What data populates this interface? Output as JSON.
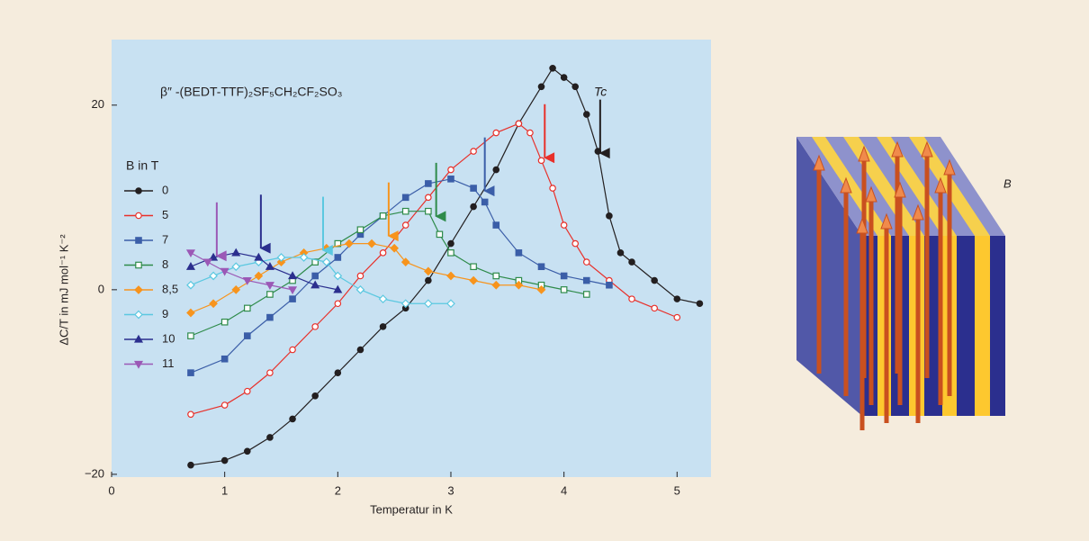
{
  "chart_data": {
    "type": "line",
    "annotation": "β″ -(BEDT-TTF)₂SF₅CH₂CF₂SO₃",
    "tc_label": "Tc",
    "x_label": "Temperatur in K",
    "y_label": "ΔC/T in mJ mol⁻¹ K⁻²",
    "legend_title": "B in T",
    "diagram_label": "B",
    "xlim": [
      0,
      5.3
    ],
    "ylim": [
      -20.3,
      27.1
    ],
    "xticks": [
      0,
      1,
      2,
      3,
      4,
      5
    ],
    "yticks": [
      {
        "value": -20,
        "label": "−20"
      },
      0,
      20
    ],
    "series": [
      {
        "name": "0",
        "color": "#231f20",
        "marker": "circle",
        "filled": true,
        "tc": 4.32,
        "x": [
          0.7,
          1.0,
          1.2,
          1.4,
          1.6,
          1.8,
          2.0,
          2.2,
          2.4,
          2.6,
          2.8,
          3.0,
          3.2,
          3.4,
          3.6,
          3.8,
          3.9,
          4.0,
          4.1,
          4.2,
          4.3,
          4.4,
          4.5,
          4.6,
          4.8,
          5.0,
          5.2
        ],
        "values": [
          -19,
          -18.5,
          -17.5,
          -16,
          -14,
          -11.5,
          -9,
          -6.5,
          -4,
          -2,
          1,
          5,
          9,
          13,
          18,
          22,
          24,
          23,
          22,
          19,
          15,
          8,
          4,
          3,
          1,
          -1,
          -1.5
        ]
      },
      {
        "name": "5",
        "color": "#e8302a",
        "marker": "circle",
        "filled": false,
        "tc": 3.83,
        "x": [
          0.7,
          1.0,
          1.2,
          1.4,
          1.6,
          1.8,
          2.0,
          2.2,
          2.4,
          2.6,
          2.8,
          3.0,
          3.2,
          3.4,
          3.6,
          3.7,
          3.8,
          3.9,
          4.0,
          4.1,
          4.2,
          4.4,
          4.6,
          4.8,
          5.0
        ],
        "values": [
          -13.5,
          -12.5,
          -11,
          -9,
          -6.5,
          -4,
          -1.5,
          1.5,
          4,
          7,
          10,
          13,
          15,
          17,
          18,
          17,
          14,
          11,
          7,
          5,
          3,
          1,
          -1,
          -2,
          -3
        ]
      },
      {
        "name": "7",
        "color": "#3b5ea8",
        "marker": "square",
        "filled": true,
        "tc": 3.3,
        "x": [
          0.7,
          1.0,
          1.2,
          1.4,
          1.6,
          1.8,
          2.0,
          2.2,
          2.4,
          2.6,
          2.8,
          3.0,
          3.2,
          3.3,
          3.4,
          3.6,
          3.8,
          4.0,
          4.2,
          4.4
        ],
        "values": [
          -9,
          -7.5,
          -5,
          -3,
          -1,
          1.5,
          3.5,
          6,
          8,
          10,
          11.5,
          12,
          11,
          9.5,
          7,
          4,
          2.5,
          1.5,
          1,
          0.5
        ]
      },
      {
        "name": "8",
        "color": "#2e8b4a",
        "marker": "square",
        "filled": false,
        "tc": 2.87,
        "x": [
          0.7,
          1.0,
          1.2,
          1.4,
          1.6,
          1.8,
          2.0,
          2.2,
          2.4,
          2.6,
          2.8,
          2.9,
          3.0,
          3.2,
          3.4,
          3.6,
          3.8,
          4.0,
          4.2
        ],
        "values": [
          -5,
          -3.5,
          -2,
          -0.5,
          1,
          3,
          5,
          6.5,
          8,
          8.5,
          8.5,
          6,
          4,
          2.5,
          1.5,
          1,
          0.5,
          0,
          -0.5
        ]
      },
      {
        "name": "8,5",
        "color": "#f7941d",
        "marker": "diamond",
        "filled": true,
        "tc": 2.45,
        "x": [
          0.7,
          0.9,
          1.1,
          1.3,
          1.5,
          1.7,
          1.9,
          2.1,
          2.3,
          2.5,
          2.6,
          2.8,
          3.0,
          3.2,
          3.4,
          3.6,
          3.8
        ],
        "values": [
          -2.5,
          -1.5,
          0,
          1.5,
          3,
          4,
          4.5,
          5,
          5,
          4.5,
          3,
          2,
          1.5,
          1,
          0.5,
          0.5,
          0
        ]
      },
      {
        "name": "9",
        "color": "#5bc8e0",
        "marker": "diamond",
        "filled": false,
        "tc": 1.87,
        "x": [
          0.7,
          0.9,
          1.1,
          1.3,
          1.5,
          1.7,
          1.9,
          2.0,
          2.2,
          2.4,
          2.6,
          2.8,
          3.0
        ],
        "values": [
          0.5,
          1.5,
          2.5,
          3,
          3.5,
          3.5,
          3,
          1.5,
          0,
          -1,
          -1.5,
          -1.5,
          -1.5
        ]
      },
      {
        "name": "10",
        "color": "#2b2f8e",
        "marker": "triangle-up",
        "filled": true,
        "tc": 1.32,
        "x": [
          0.7,
          0.9,
          1.1,
          1.3,
          1.4,
          1.6,
          1.8,
          2.0
        ],
        "values": [
          2.5,
          3.5,
          4,
          3.5,
          2.5,
          1.5,
          0.5,
          0
        ]
      },
      {
        "name": "11",
        "color": "#9b59b6",
        "marker": "triangle-down",
        "filled": true,
        "tc": 0.93,
        "x": [
          0.7,
          0.85,
          1.0,
          1.2,
          1.4,
          1.6
        ],
        "values": [
          4,
          3,
          2,
          1,
          0.5,
          0
        ]
      }
    ]
  }
}
